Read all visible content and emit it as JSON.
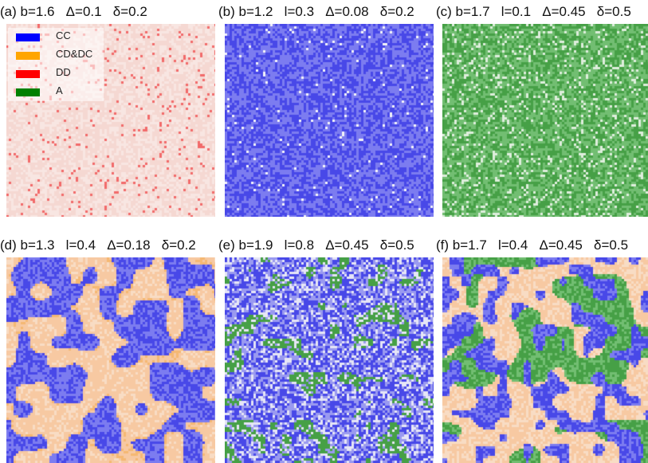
{
  "legend": {
    "items": [
      {
        "label": "CC",
        "color": "#0000ff"
      },
      {
        "label": "CD&DC",
        "color": "#ffa500"
      },
      {
        "label": "DD",
        "color": "#ff0000"
      },
      {
        "label": "A",
        "color": "#008000"
      }
    ]
  },
  "panels": [
    {
      "title": "(a) b=1.6   Δ=0.1   δ=0.2",
      "pattern": "sparse-red"
    },
    {
      "title": "(b) b=1.2   l=0.3   Δ=0.08   δ=0.2",
      "pattern": "dense-blue"
    },
    {
      "title": "(c) b=1.7   l=0.1   Δ=0.45   δ=0.5",
      "pattern": "dense-green"
    },
    {
      "title": "(d) b=1.3   l=0.4   Δ=0.18   δ=0.2",
      "pattern": "blue-islands"
    },
    {
      "title": "(e) b=1.9   l=0.8   Δ=0.45   δ=0.5",
      "pattern": "blue-green-noise"
    },
    {
      "title": "(f) b=1.7   l=0.4   Δ=0.45   δ=0.5",
      "pattern": "mixed-clusters"
    }
  ]
}
